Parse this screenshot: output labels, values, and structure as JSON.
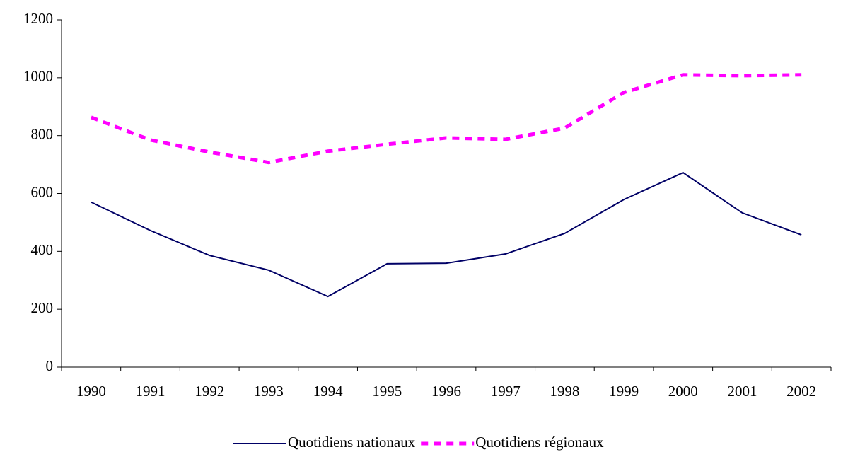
{
  "chart_data": {
    "type": "line",
    "categories": [
      "1990",
      "1991",
      "1992",
      "1993",
      "1994",
      "1995",
      "1996",
      "1997",
      "1998",
      "1999",
      "2000",
      "2001",
      "2002"
    ],
    "series": [
      {
        "name": "Quotidiens nationaux",
        "color": "#000066",
        "dash": false,
        "values": [
          570,
          472,
          386,
          335,
          244,
          357,
          359,
          391,
          462,
          579,
          672,
          533,
          457
        ]
      },
      {
        "name": "Quotidiens régionaux",
        "color": "#ff00ff",
        "dash": true,
        "values": [
          863,
          785,
          743,
          707,
          746,
          770,
          792,
          787,
          826,
          949,
          1010,
          1007,
          1010
        ]
      }
    ],
    "ylim": [
      0,
      1200
    ],
    "yticks": [
      0,
      200,
      400,
      600,
      800,
      1000,
      1200
    ],
    "grid": false,
    "legend": "bottom"
  }
}
